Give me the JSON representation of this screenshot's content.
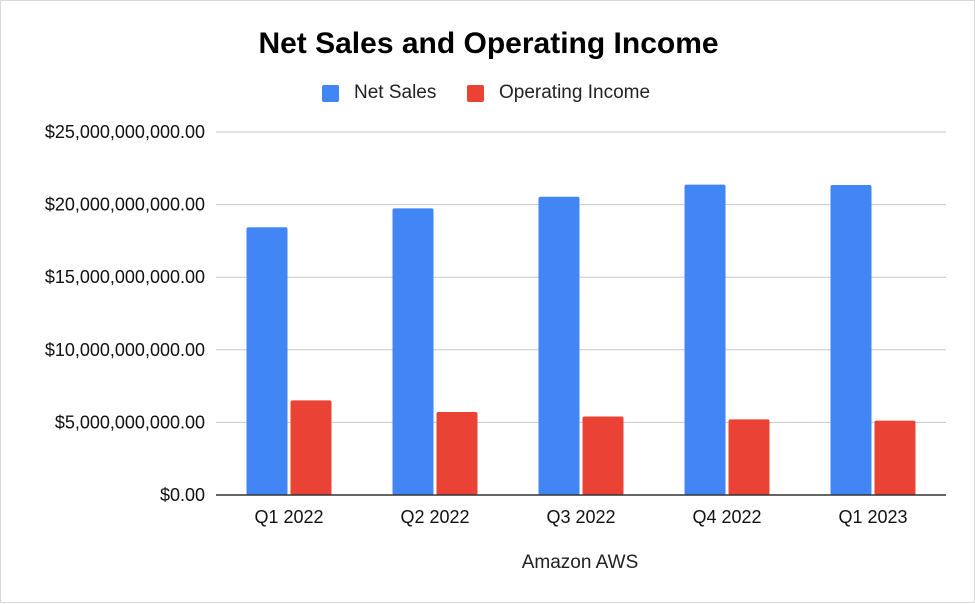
{
  "chart_data": {
    "type": "bar",
    "title": "Net Sales and Operating Income",
    "xlabel": "Amazon AWS",
    "ylabel": "",
    "categories": [
      "Q1 2022",
      "Q2 2022",
      "Q3 2022",
      "Q4 2022",
      "Q1 2023"
    ],
    "series": [
      {
        "name": "Net Sales",
        "color": "#4285f4",
        "values": [
          18441000000,
          19739000000,
          20538000000,
          21378000000,
          21354000000
        ]
      },
      {
        "name": "Operating Income",
        "color": "#ea4335",
        "values": [
          6518000000,
          5715000000,
          5403000000,
          5205000000,
          5123000000
        ]
      }
    ],
    "ylim": [
      0,
      25000000000
    ],
    "yticks": [
      0,
      5000000000,
      10000000000,
      15000000000,
      20000000000,
      25000000000
    ],
    "ytick_labels": [
      "$0.00",
      "$5,000,000,000.00",
      "$10,000,000,000.00",
      "$15,000,000,000.00",
      "$20,000,000,000.00",
      "$25,000,000,000.00"
    ],
    "grid": true,
    "legend_position": "top-center"
  }
}
